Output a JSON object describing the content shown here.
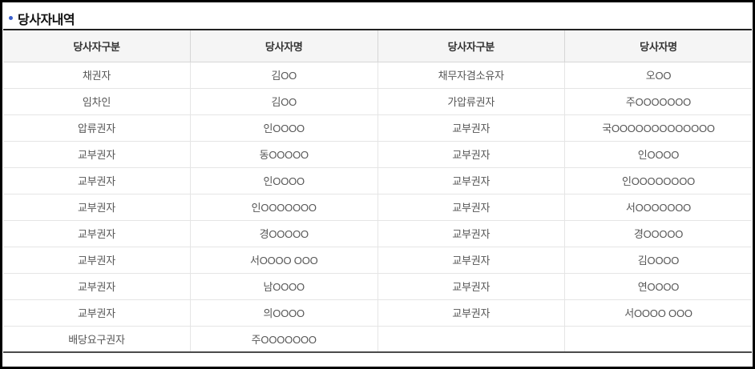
{
  "page": {
    "title": "당사자내역",
    "accent_color": "#3a5fcd"
  },
  "table": {
    "headers": [
      "당사자구분",
      "당사자명",
      "당사자구분",
      "당사자명"
    ],
    "rows": [
      [
        "채권자",
        "김OO",
        "채무자겸소유자",
        "오OO"
      ],
      [
        "임차인",
        "김OO",
        "가압류권자",
        "주OOOOOOO"
      ],
      [
        "압류권자",
        "인OOOO",
        "교부권자",
        "국OOOOOOOOOOOOO"
      ],
      [
        "교부권자",
        "동OOOOO",
        "교부권자",
        "인OOOO"
      ],
      [
        "교부권자",
        "인OOOO",
        "교부권자",
        "인OOOOOOOO"
      ],
      [
        "교부권자",
        "인OOOOOOO",
        "교부권자",
        "서OOOOOOO"
      ],
      [
        "교부권자",
        "경OOOOO",
        "교부권자",
        "경OOOOO"
      ],
      [
        "교부권자",
        "서OOOO OOO",
        "교부권자",
        "김OOOO"
      ],
      [
        "교부권자",
        "남OOOO",
        "교부권자",
        "연OOOO"
      ],
      [
        "교부권자",
        "의OOOO",
        "교부권자",
        "서OOOO OOO"
      ],
      [
        "배당요구권자",
        "주OOOOOOO",
        "",
        ""
      ]
    ]
  }
}
